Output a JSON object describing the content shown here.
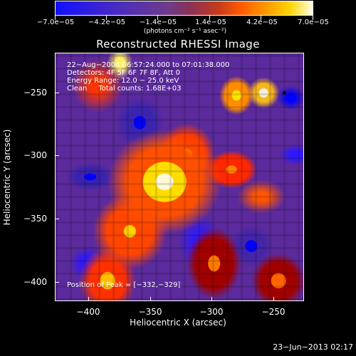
{
  "colorbar": {
    "ticks": [
      "−7.0e−05",
      "−4.2e−05",
      "−1.4e−05",
      "1.4e−05",
      "4.2e−05",
      "7.0e−05"
    ],
    "unit": "(photons cm⁻² s⁻¹ asec⁻²)"
  },
  "header": {
    "title": "Reconstructed RHESSI Image"
  },
  "plot": {
    "info_lines": {
      "line1": "22−Aug−2004 06:57:24.000 to 07:01:38.000",
      "line2": "Detectors: 4F 5F 6F 7F 8F, Att 0",
      "line3": "Energy Range: 12.0 − 25.0 keV",
      "line4": "Clean     Total counts: 1.68E+03",
      "peak": "Position of Peak = [−332,−329]"
    },
    "x_ticks": [
      "−400",
      "−350",
      "−300",
      "−250"
    ],
    "y_ticks": [
      "−250",
      "−300",
      "−350",
      "−400"
    ],
    "xlabel": "Heliocentric X (arcsec)",
    "ylabel": "Heliocentric Y (arcsec)"
  },
  "footer": {
    "timestamp": "23−Jun−2013 02:17"
  },
  "colors": {
    "background": "#000000",
    "text": "#ffffff",
    "frame": "#ffffff"
  }
}
